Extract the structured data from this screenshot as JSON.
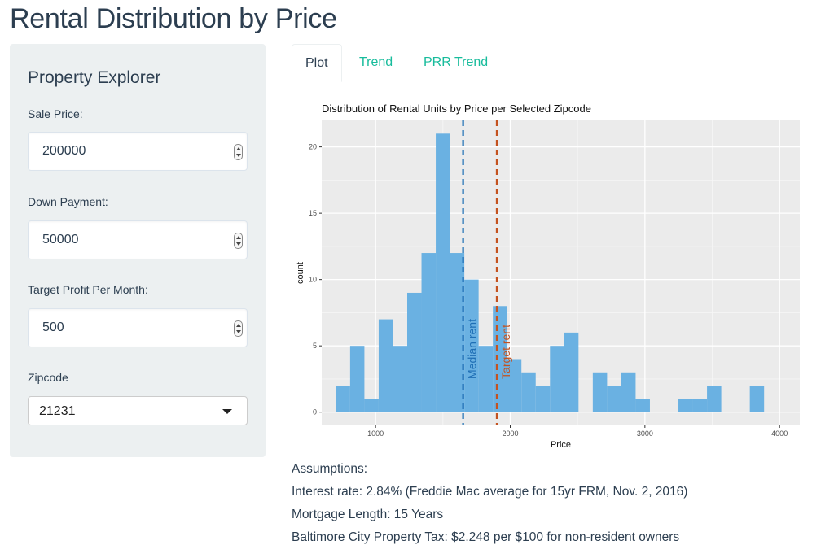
{
  "page": {
    "title": "Rental Distribution by Price"
  },
  "sidebar": {
    "heading": "Property Explorer",
    "fields": [
      {
        "label": "Sale Price:",
        "value": "200000"
      },
      {
        "label": "Down Payment:",
        "value": "50000"
      },
      {
        "label": "Target Profit Per Month:",
        "value": "500"
      }
    ],
    "zipcode": {
      "label": "Zipcode",
      "value": "21231"
    }
  },
  "tabs": [
    {
      "label": "Plot",
      "active": true
    },
    {
      "label": "Trend",
      "active": false
    },
    {
      "label": "PRR Trend",
      "active": false
    }
  ],
  "chart_data": {
    "type": "bar",
    "title": "Distribution of Rental Units by Price per Selected Zipcode",
    "xlabel": "Price",
    "ylabel": "count",
    "xlim": [
      600,
      4150
    ],
    "ylim": [
      -1,
      22
    ],
    "x_ticks": [
      1000,
      2000,
      3000,
      4000
    ],
    "y_ticks": [
      0,
      5,
      10,
      15,
      20
    ],
    "bin_width": 106,
    "bins": [
      {
        "x0": 705,
        "count": 2
      },
      {
        "x0": 811,
        "count": 5
      },
      {
        "x0": 917,
        "count": 1
      },
      {
        "x0": 1023,
        "count": 7
      },
      {
        "x0": 1129,
        "count": 5
      },
      {
        "x0": 1235,
        "count": 9
      },
      {
        "x0": 1341,
        "count": 12
      },
      {
        "x0": 1447,
        "count": 21
      },
      {
        "x0": 1553,
        "count": 12
      },
      {
        "x0": 1659,
        "count": 10
      },
      {
        "x0": 1765,
        "count": 5
      },
      {
        "x0": 1871,
        "count": 8
      },
      {
        "x0": 1977,
        "count": 4
      },
      {
        "x0": 2083,
        "count": 3
      },
      {
        "x0": 2189,
        "count": 2
      },
      {
        "x0": 2295,
        "count": 5
      },
      {
        "x0": 2401,
        "count": 6
      },
      {
        "x0": 2507,
        "count": 0
      },
      {
        "x0": 2613,
        "count": 3
      },
      {
        "x0": 2719,
        "count": 2
      },
      {
        "x0": 2825,
        "count": 3
      },
      {
        "x0": 2931,
        "count": 1
      },
      {
        "x0": 3037,
        "count": 0
      },
      {
        "x0": 3143,
        "count": 0
      },
      {
        "x0": 3249,
        "count": 1
      },
      {
        "x0": 3355,
        "count": 1
      },
      {
        "x0": 3461,
        "count": 2
      },
      {
        "x0": 3567,
        "count": 0
      },
      {
        "x0": 3673,
        "count": 0
      },
      {
        "x0": 3779,
        "count": 2
      }
    ],
    "vlines": [
      {
        "label": "Median rent",
        "x": 1650,
        "color": "#1f6fb5"
      },
      {
        "label": "Target rent",
        "x": 1900,
        "color": "#c4521f"
      }
    ],
    "bar_color": "#6ab1e2",
    "panel_color": "#ebebeb",
    "grid": true
  },
  "assumptions": {
    "heading": "Assumptions:",
    "lines": [
      "Interest rate: 2.84% (Freddie Mac average for 15yr FRM, Nov. 2, 2016)",
      "Mortgage Length: 15 Years",
      "Baltimore City Property Tax: $2.248 per $100 for non-resident owners"
    ]
  }
}
